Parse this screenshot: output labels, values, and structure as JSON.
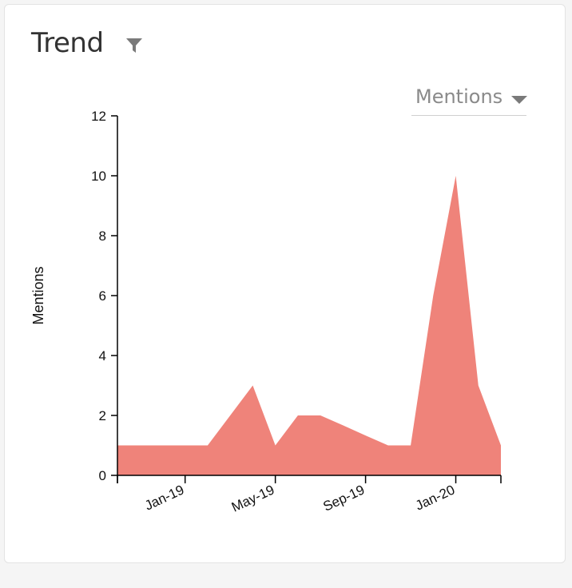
{
  "header": {
    "title": "Trend",
    "filter_icon": "filter-icon"
  },
  "metric_select": {
    "label": "Mentions",
    "icon": "caret-down-icon"
  },
  "chart_data": {
    "type": "area",
    "ylabel": "Mentions",
    "xlabel": "",
    "ylim": [
      0,
      12
    ],
    "yticks": [
      0,
      2,
      4,
      6,
      8,
      10,
      12
    ],
    "xtick_labels": [
      "Jan-19",
      "May-19",
      "Sep-19",
      "Jan-20"
    ],
    "x": [
      "2018-10",
      "2018-11",
      "2018-12",
      "2019-01",
      "2019-02",
      "2019-03",
      "2019-04",
      "2019-05",
      "2019-06",
      "2019-07",
      "2019-08",
      "2019-09",
      "2019-10",
      "2019-11",
      "2019-12",
      "2020-01",
      "2020-02",
      "2020-03"
    ],
    "series": [
      {
        "values": [
          1,
          1,
          1,
          1,
          1,
          2,
          3,
          1,
          2,
          2,
          1.67,
          1.33,
          1,
          1,
          6,
          10,
          3,
          1
        ]
      }
    ],
    "color": "#ef837a",
    "grid": false
  }
}
